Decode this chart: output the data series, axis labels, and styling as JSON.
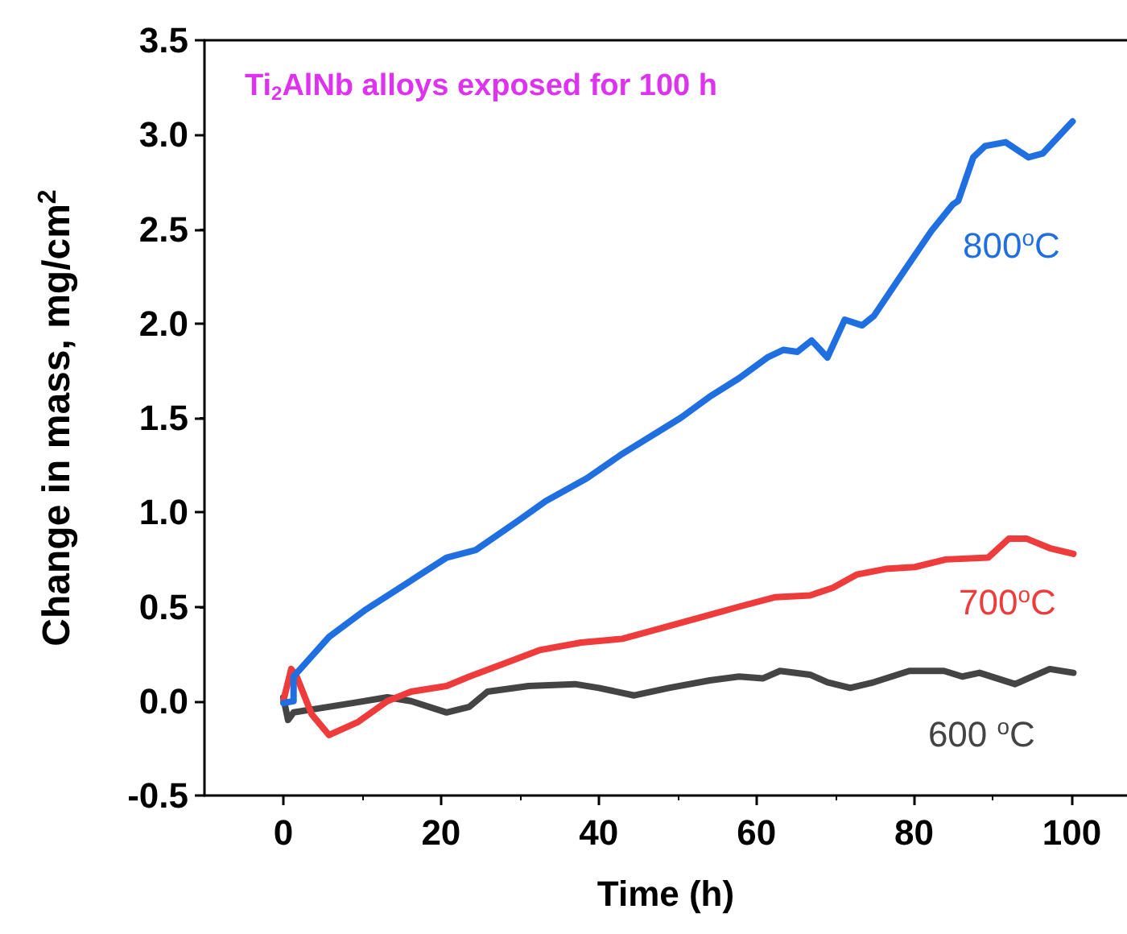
{
  "chart_data": {
    "type": "line",
    "title": "Ti$_{2}$AlNb alloys exposed for 100 h",
    "xlabel": "Time (h)",
    "ylabel": "Change in mass, mg/cm$^{2}$",
    "xlim": [
      -10,
      107
    ],
    "xticks": [
      0,
      20,
      40,
      60,
      80,
      100
    ],
    "ylim": [
      -0.5,
      3.5
    ],
    "yticks": [
      -0.5,
      {
        "value": 0,
        "label": "0.0"
      },
      0.5,
      {
        "value": 1,
        "label": "1.0"
      },
      1.5,
      {
        "value": 2,
        "label": "2.0"
      },
      2.5,
      {
        "value": 3,
        "label": "3.0"
      },
      3.5
    ],
    "grid": false,
    "marker": "none",
    "line_style": "solid",
    "series": [
      {
        "name": "800$^{o}$C",
        "color": "#1f6fe0",
        "x": [
          0,
          1.3,
          1.3,
          2.8,
          5.8,
          10.3,
          17,
          20.7,
          24.4,
          29.6,
          33.3,
          38.5,
          43,
          50.4,
          54,
          57.8,
          61.4,
          63.4,
          65.2,
          67,
          69,
          71.2,
          73.4,
          74.9,
          78.6,
          82.2,
          84.9,
          85.6,
          87.5,
          89,
          91.6,
          94.5,
          96.3,
          100.1
        ],
        "values": [
          -0.01,
          0,
          0.13,
          0.2,
          0.34,
          0.48,
          0.66,
          0.76,
          0.8,
          0.95,
          1.06,
          1.18,
          1.31,
          1.5,
          1.61,
          1.71,
          1.82,
          1.86,
          1.85,
          1.91,
          1.82,
          2.02,
          1.99,
          2.04,
          2.27,
          2.49,
          2.63,
          2.65,
          2.88,
          2.94,
          2.96,
          2.88,
          2.9,
          3.07
        ]
      },
      {
        "name": "700$^{o}$C",
        "color": "#ee3b3b",
        "x": [
          0,
          1,
          1.7,
          3.6,
          5.8,
          9.5,
          13.2,
          16.2,
          20.7,
          23.6,
          28.1,
          32.5,
          37.8,
          43,
          47.4,
          52.6,
          57.8,
          62.3,
          66.8,
          69.7,
          72.7,
          76.4,
          80.1,
          84,
          89.4,
          92,
          94.3,
          97.2,
          100.2
        ],
        "values": [
          0,
          0.17,
          0.13,
          -0.07,
          -0.18,
          -0.11,
          0,
          0.05,
          0.08,
          0.13,
          0.2,
          0.27,
          0.31,
          0.33,
          0.38,
          0.44,
          0.5,
          0.55,
          0.56,
          0.6,
          0.67,
          0.7,
          0.71,
          0.75,
          0.76,
          0.86,
          0.86,
          0.81,
          0.78
        ]
      },
      {
        "name": "600 $^{o}$C",
        "color": "#444444",
        "x": [
          0,
          0.6,
          1.3,
          4.3,
          8.8,
          13.2,
          16.2,
          20.7,
          23.6,
          25.9,
          31.1,
          37,
          40,
          44.5,
          48.9,
          54.1,
          57.8,
          60.8,
          63,
          66.8,
          69,
          71.9,
          74.9,
          79.4,
          83.8,
          86.1,
          88.3,
          92.8,
          97.2,
          100.2
        ],
        "values": [
          0.02,
          -0.1,
          -0.06,
          -0.04,
          -0.01,
          0.02,
          0,
          -0.06,
          -0.03,
          0.05,
          0.08,
          0.09,
          0.07,
          0.03,
          0.07,
          0.11,
          0.13,
          0.12,
          0.16,
          0.14,
          0.1,
          0.07,
          0.1,
          0.16,
          0.16,
          0.13,
          0.15,
          0.09,
          0.17,
          0.15
        ]
      }
    ]
  }
}
